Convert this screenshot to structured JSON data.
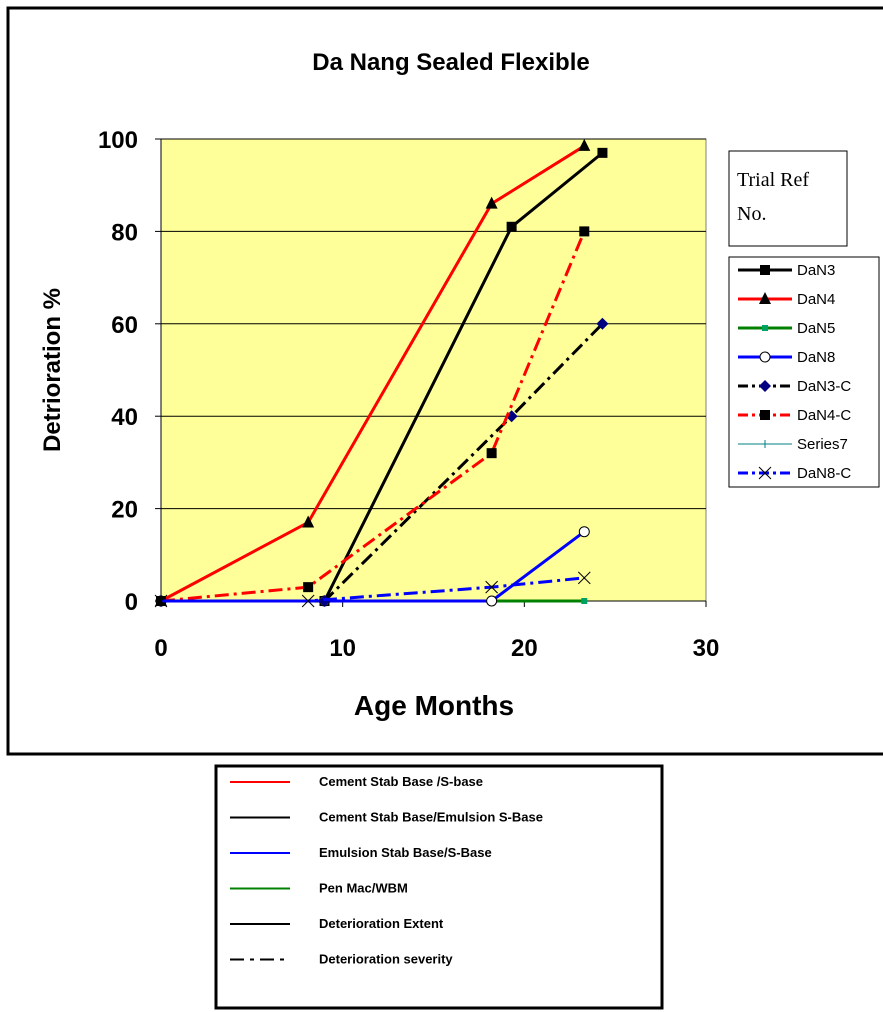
{
  "chart_data": {
    "type": "line",
    "title": "Da Nang Sealed Flexible",
    "xlabel": "Age Months",
    "ylabel": "Detrioration %",
    "xlim": [
      0,
      30
    ],
    "ylim": [
      0,
      100
    ],
    "xticks": [
      0,
      10,
      20,
      30
    ],
    "yticks": [
      0,
      20,
      40,
      60,
      80,
      100
    ],
    "grid": "horizontal",
    "plot_background": "#ffff99",
    "legend_title": "Trial Ref No.",
    "legend_placement": "right",
    "series": [
      {
        "name": "DaN3",
        "color": "#000000",
        "dash": "solid",
        "marker": "square",
        "x": [
          0,
          9,
          19.3,
          24.3
        ],
        "y": [
          0,
          0,
          81,
          97
        ]
      },
      {
        "name": "DaN4",
        "color": "#ff0000",
        "dash": "solid",
        "marker": "triangle",
        "x": [
          0,
          8.1,
          18.2,
          23.3
        ],
        "y": [
          0,
          17,
          86,
          98.5
        ]
      },
      {
        "name": "DaN5",
        "color": "#008000",
        "dash": "solid",
        "marker": "small-square",
        "x": [
          0,
          9,
          18.2,
          23.3
        ],
        "y": [
          0,
          0,
          0,
          0
        ]
      },
      {
        "name": "DaN8",
        "color": "#0000ff",
        "dash": "solid",
        "marker": "circle",
        "x": [
          0,
          9,
          18.2,
          23.3
        ],
        "y": [
          0,
          0,
          0,
          15
        ]
      },
      {
        "name": "DaN3-C",
        "color": "#000000",
        "dash": "dashdot",
        "marker": "diamond",
        "x": [
          0,
          9,
          19.3,
          24.3
        ],
        "y": [
          0,
          0,
          40,
          60
        ]
      },
      {
        "name": "DaN4-C",
        "color": "#ff0000",
        "dash": "dashdot",
        "marker": "square",
        "x": [
          0,
          8.1,
          18.2,
          23.3
        ],
        "y": [
          0,
          3,
          32,
          80
        ]
      },
      {
        "name": "Series7",
        "color": "#008080",
        "dash": "solid",
        "marker": "plus",
        "x": [],
        "y": []
      },
      {
        "name": "DaN8-C",
        "color": "#0000ff",
        "dash": "dashdot",
        "marker": "x",
        "x": [
          0,
          8.1,
          18.2,
          23.3
        ],
        "y": [
          0,
          0,
          3,
          5
        ]
      }
    ],
    "bottom_legend": [
      {
        "label": "Cement Stab Base /S-base",
        "color": "#ff0000",
        "dash": "solid"
      },
      {
        "label": "Cement Stab Base/Emulsion S-Base",
        "color": "#000000",
        "dash": "solid"
      },
      {
        "label": "Emulsion Stab Base/S-Base",
        "color": "#0000ff",
        "dash": "solid"
      },
      {
        "label": "Pen Mac/WBM",
        "color": "#008000",
        "dash": "solid"
      },
      {
        "label": "Deterioration Extent",
        "color": "#000000",
        "dash": "solid"
      },
      {
        "label": "Deterioration severity",
        "color": "#000000",
        "dash": "dashdot"
      }
    ]
  }
}
